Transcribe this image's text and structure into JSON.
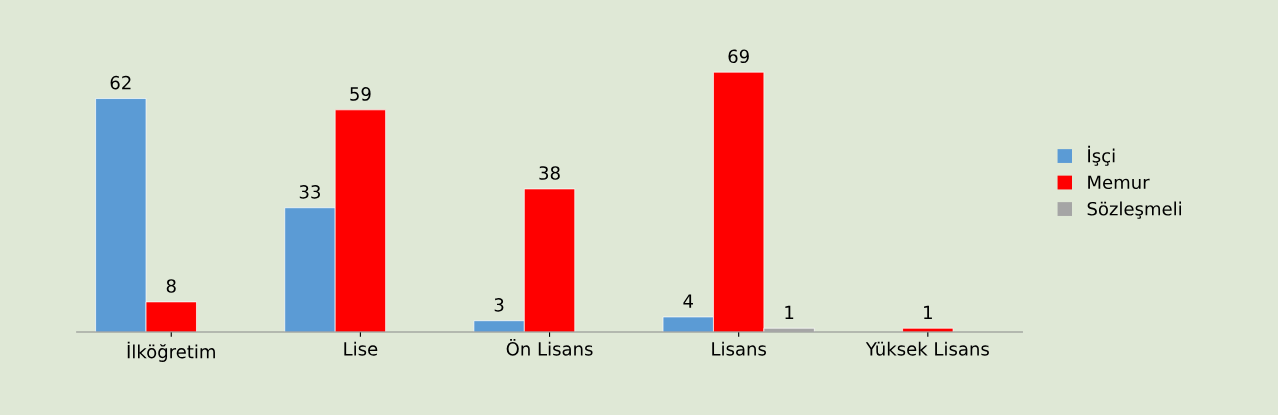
{
  "chart_data": {
    "type": "bar",
    "categories": [
      "İlköğretim",
      "Lise",
      "Ön Lisans",
      "Lisans",
      "Yüksek Lisans"
    ],
    "series": [
      {
        "name": "İşçi",
        "color": "#5b9bd5",
        "values": [
          62,
          33,
          3,
          4,
          null
        ]
      },
      {
        "name": "Memur",
        "color": "#ff0000",
        "values": [
          8,
          59,
          38,
          69,
          1
        ]
      },
      {
        "name": "Sözleşmeli",
        "color": "#a5a5a5",
        "values": [
          null,
          null,
          null,
          1,
          null
        ]
      }
    ],
    "data_labels": true,
    "legend": "right",
    "grid": false
  }
}
